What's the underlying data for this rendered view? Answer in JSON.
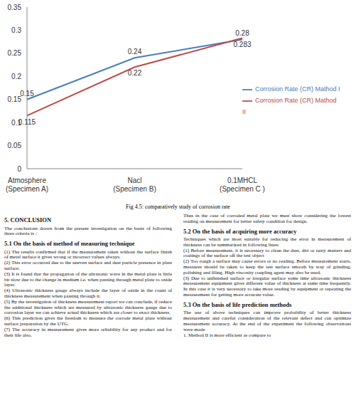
{
  "chart_data": {
    "type": "line",
    "categories": [
      "Atmosphere (Specimen A)",
      "Nacl (Specimen B)",
      "0.1MHCL (Specimen C )"
    ],
    "series": [
      {
        "name": "Corrosion Rate (CR) Mathod I",
        "color": "#4a7ebb",
        "values": [
          0.15,
          0.24,
          0.28
        ]
      },
      {
        "name": "Corrosion Rate (CR) Mathod II",
        "color": "#be4b48",
        "values": [
          0.115,
          0.22,
          0.283
        ]
      }
    ],
    "ylim": [
      0,
      0.35
    ],
    "yticks": [
      0,
      0.05,
      0.1,
      0.15,
      0.2,
      0.25,
      0.3,
      0.35
    ],
    "grid": false,
    "legend": "right",
    "data_labels": true,
    "marker": "none"
  },
  "caption": "Fig 4.5: comparatively study of corrosion rate",
  "document": {
    "left": [
      {
        "heading": "5. CONCLUSION"
      },
      {
        "text": "The conclusions drawn from the present investigation on the basis of following three criteria is :"
      },
      {
        "heading": "5.1 On the basis of method of measuring technique"
      },
      {
        "text": "(1) The results confirmed that if the measurement taken without the surface finish of metal surface it gives wrong or incorrect values always."
      },
      {
        "text": "(2) This error occurred due to the uneven surface and dust particle presence in plate surface."
      },
      {
        "text": "(3) It is found that the propagation of the ultrasonic wave in the metal plate is little bit slow due to the change in medium i.e. when passing through metal plate to oxide layer."
      },
      {
        "text": "(4) Ultrasonic thickness gauge always include the layer of oxide in the count of thickness measurement when passing through it."
      },
      {
        "text": "(5) By the investigation of thickness measurement report we can conclude, if reduce the additional thickness which are measured by ultrasonic thickness gauge due to corrosion layer we can achieve actual thickness which are closer to exact thickness."
      },
      {
        "text": "(6) This prediction gives the freedom to measure the corrode metal plate without surface preparation by the UTG."
      },
      {
        "text": "(7) The accuracy in measurement gives more reliability for any product and for their life also."
      }
    ],
    "right": [
      {
        "text": "Thus in the case of corroded metal plate we must show considering the lowest reading on measurement for better safety condition for design."
      },
      {
        "heading": "5.2 On the basis of acquiring more accuracy"
      },
      {
        "text": "Techniques which are most suitable for reducing the error in measurement of thickness can be summarized in following lines:"
      },
      {
        "text": "(1) Before measurement, it is necessary to clean the dust, dirt or rusty matters and coatings of the surface off the test object"
      },
      {
        "text": "(2) Too rough a surface may cause errors or no reading. Before measurement starts, measures should be taken to keep the test surface smooth by way of grinding, polishing and filing. High viscosity coupling agent may also be used."
      },
      {
        "text": "(3) Due to unfinished surface or irregular surface some time ultrasonic thickness measurement equipment gives different value of thickness at same time frequently. In this case it is very necessary to take more reading by equipment or repeating the measurement for getting more accurate value."
      },
      {
        "heading": "5.3 On the basis of life prediction methods"
      },
      {
        "text": "The use of above techniques can improve probability of better thickness measurement and careful consideration of the relevant defect and can optimize measurement accuracy. At the end of the experiment the following observations were made"
      },
      {
        "text": "1. Method II is more efficient as compare to"
      }
    ]
  }
}
